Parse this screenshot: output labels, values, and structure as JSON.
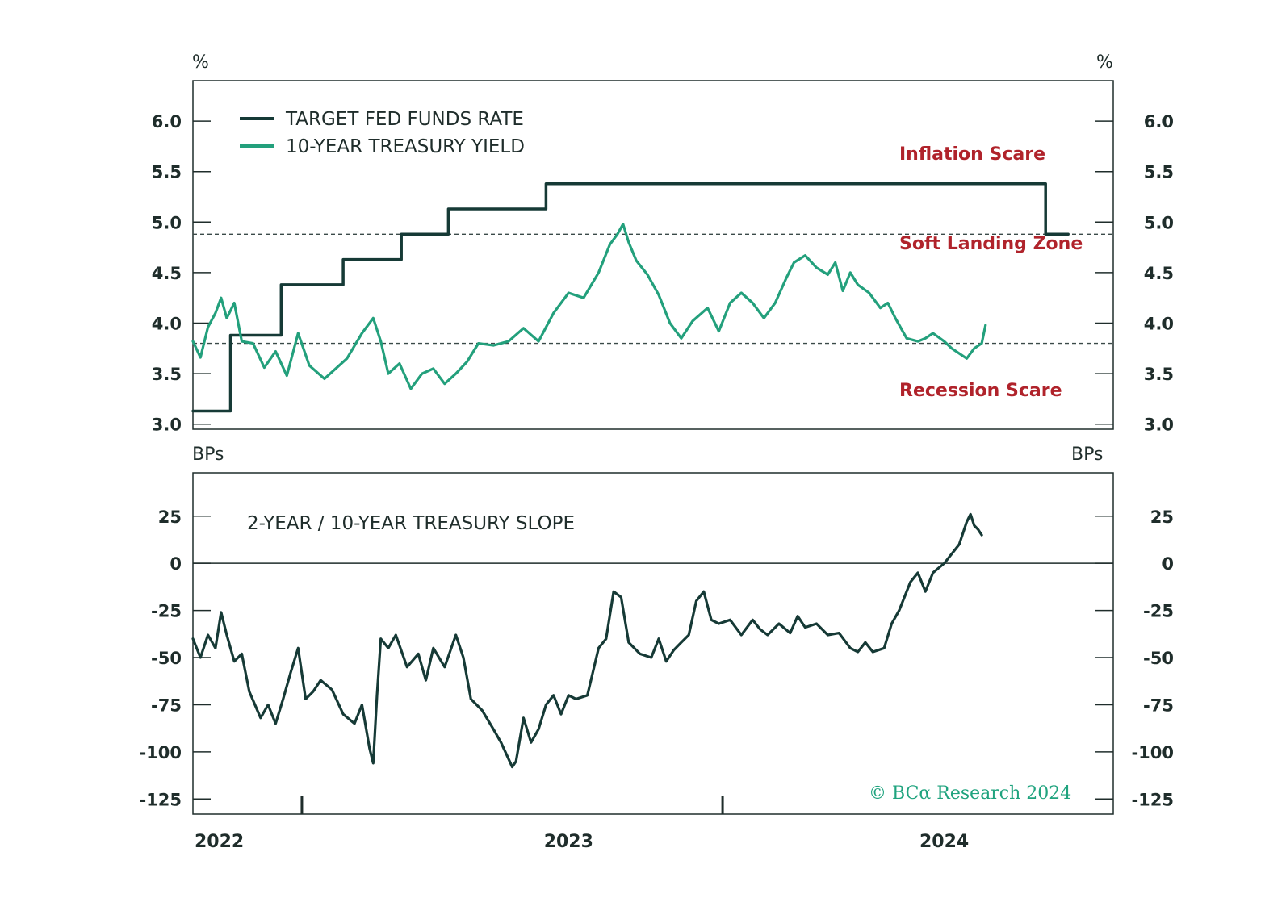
{
  "chart_data": [
    {
      "type": "line",
      "panel": "top",
      "unit_left": "%",
      "unit_right": "%",
      "ylim": [
        2.95,
        6.4
      ],
      "yticks": [
        3.0,
        3.5,
        4.0,
        4.5,
        5.0,
        5.5,
        6.0
      ],
      "ytick_labels": [
        "3.0",
        "3.5",
        "4.0",
        "4.5",
        "5.0",
        "5.5",
        "6.0"
      ],
      "xlim": [
        2022.0,
        2024.45
      ],
      "reference_lines": [
        4.88,
        3.8
      ],
      "annotations": [
        "Inflation Scare",
        "Soft Landing Zone",
        "Recession Scare"
      ],
      "series": [
        {
          "name": "TARGET FED FUNDS RATE",
          "color": "#163a36",
          "step": true,
          "points": [
            [
              2022.0,
              3.13
            ],
            [
              2022.1,
              3.13
            ],
            [
              2022.1,
              3.88
            ],
            [
              2022.235,
              3.88
            ],
            [
              2022.235,
              4.38
            ],
            [
              2022.4,
              4.38
            ],
            [
              2022.4,
              4.63
            ],
            [
              2022.555,
              4.63
            ],
            [
              2022.555,
              4.88
            ],
            [
              2022.68,
              4.88
            ],
            [
              2022.68,
              5.13
            ],
            [
              2022.94,
              5.13
            ],
            [
              2022.94,
              5.38
            ],
            [
              2024.27,
              5.38
            ],
            [
              2024.27,
              4.88
            ],
            [
              2024.33,
              4.88
            ]
          ]
        },
        {
          "name": "10-YEAR TREASURY YIELD",
          "color": "#23a07c",
          "points": [
            [
              2022.0,
              3.82
            ],
            [
              2022.02,
              3.66
            ],
            [
              2022.04,
              3.96
            ],
            [
              2022.06,
              4.1
            ],
            [
              2022.075,
              4.25
            ],
            [
              2022.09,
              4.05
            ],
            [
              2022.11,
              4.2
            ],
            [
              2022.13,
              3.82
            ],
            [
              2022.16,
              3.8
            ],
            [
              2022.19,
              3.56
            ],
            [
              2022.22,
              3.72
            ],
            [
              2022.25,
              3.48
            ],
            [
              2022.28,
              3.9
            ],
            [
              2022.31,
              3.58
            ],
            [
              2022.35,
              3.45
            ],
            [
              2022.38,
              3.55
            ],
            [
              2022.41,
              3.65
            ],
            [
              2022.45,
              3.9
            ],
            [
              2022.48,
              4.05
            ],
            [
              2022.5,
              3.82
            ],
            [
              2022.52,
              3.5
            ],
            [
              2022.55,
              3.6
            ],
            [
              2022.58,
              3.35
            ],
            [
              2022.61,
              3.5
            ],
            [
              2022.64,
              3.55
            ],
            [
              2022.67,
              3.4
            ],
            [
              2022.7,
              3.5
            ],
            [
              2022.73,
              3.62
            ],
            [
              2022.76,
              3.8
            ],
            [
              2022.8,
              3.78
            ],
            [
              2022.84,
              3.82
            ],
            [
              2022.88,
              3.95
            ],
            [
              2022.92,
              3.82
            ],
            [
              2022.96,
              4.1
            ],
            [
              2023.0,
              4.3
            ],
            [
              2023.04,
              4.25
            ],
            [
              2023.08,
              4.5
            ],
            [
              2023.11,
              4.78
            ],
            [
              2023.13,
              4.88
            ],
            [
              2023.145,
              4.98
            ],
            [
              2023.16,
              4.8
            ],
            [
              2023.18,
              4.62
            ],
            [
              2023.21,
              4.48
            ],
            [
              2023.24,
              4.28
            ],
            [
              2023.27,
              4.0
            ],
            [
              2023.3,
              3.85
            ],
            [
              2023.33,
              4.02
            ],
            [
              2023.37,
              4.15
            ],
            [
              2023.4,
              3.92
            ],
            [
              2023.43,
              4.2
            ],
            [
              2023.46,
              4.3
            ],
            [
              2023.49,
              4.2
            ],
            [
              2023.52,
              4.05
            ],
            [
              2023.55,
              4.2
            ],
            [
              2023.58,
              4.45
            ],
            [
              2023.6,
              4.6
            ],
            [
              2023.63,
              4.67
            ],
            [
              2023.66,
              4.55
            ],
            [
              2023.69,
              4.48
            ],
            [
              2023.71,
              4.6
            ],
            [
              2023.73,
              4.32
            ],
            [
              2023.75,
              4.5
            ],
            [
              2023.77,
              4.38
            ],
            [
              2023.8,
              4.3
            ],
            [
              2023.83,
              4.15
            ],
            [
              2023.85,
              4.2
            ],
            [
              2023.87,
              4.05
            ],
            [
              2023.9,
              3.85
            ],
            [
              2023.93,
              3.82
            ],
            [
              2023.95,
              3.85
            ],
            [
              2023.97,
              3.9
            ],
            [
              2024.0,
              3.82
            ],
            [
              2024.02,
              3.75
            ],
            [
              2024.04,
              3.7
            ],
            [
              2024.06,
              3.65
            ],
            [
              2024.08,
              3.75
            ],
            [
              2024.1,
              3.8
            ],
            [
              2024.11,
              3.98
            ]
          ]
        }
      ],
      "legend": [
        "TARGET FED FUNDS RATE",
        "10-YEAR TREASURY YIELD"
      ]
    },
    {
      "type": "line",
      "panel": "bottom",
      "title": "2-YEAR / 10-YEAR TREASURY SLOPE",
      "unit_left": "BPs",
      "unit_right": "BPs",
      "ylim": [
        -133,
        48
      ],
      "yticks": [
        -125,
        -100,
        -75,
        -50,
        -25,
        0,
        25
      ],
      "ytick_labels": [
        "-125",
        "-100",
        "-75",
        "-50",
        "-25",
        "0",
        "25"
      ],
      "xlim": [
        2022.0,
        2024.45
      ],
      "x_ticks": [
        2022.0,
        2023.0,
        2024.0
      ],
      "x_tick_labels": [
        "2022",
        "2023",
        "2024"
      ],
      "x_minor_ticks": [
        2022.29,
        2023.41
      ],
      "reference_lines": [
        0
      ],
      "series": [
        {
          "name": "2-YEAR / 10-YEAR TREASURY SLOPE",
          "color": "#163a36",
          "points": [
            [
              2022.0,
              -40
            ],
            [
              2022.02,
              -50
            ],
            [
              2022.04,
              -38
            ],
            [
              2022.06,
              -45
            ],
            [
              2022.075,
              -26
            ],
            [
              2022.09,
              -38
            ],
            [
              2022.11,
              -52
            ],
            [
              2022.13,
              -48
            ],
            [
              2022.15,
              -68
            ],
            [
              2022.18,
              -82
            ],
            [
              2022.2,
              -75
            ],
            [
              2022.22,
              -85
            ],
            [
              2022.24,
              -72
            ],
            [
              2022.26,
              -58
            ],
            [
              2022.28,
              -45
            ],
            [
              2022.3,
              -72
            ],
            [
              2022.32,
              -68
            ],
            [
              2022.34,
              -62
            ],
            [
              2022.37,
              -67
            ],
            [
              2022.4,
              -80
            ],
            [
              2022.43,
              -85
            ],
            [
              2022.45,
              -75
            ],
            [
              2022.47,
              -98
            ],
            [
              2022.48,
              -106
            ],
            [
              2022.49,
              -70
            ],
            [
              2022.5,
              -40
            ],
            [
              2022.52,
              -45
            ],
            [
              2022.54,
              -38
            ],
            [
              2022.57,
              -55
            ],
            [
              2022.6,
              -48
            ],
            [
              2022.62,
              -62
            ],
            [
              2022.64,
              -45
            ],
            [
              2022.67,
              -55
            ],
            [
              2022.7,
              -38
            ],
            [
              2022.72,
              -50
            ],
            [
              2022.74,
              -72
            ],
            [
              2022.77,
              -78
            ],
            [
              2022.8,
              -88
            ],
            [
              2022.82,
              -95
            ],
            [
              2022.85,
              -108
            ],
            [
              2022.86,
              -105
            ],
            [
              2022.88,
              -82
            ],
            [
              2022.9,
              -95
            ],
            [
              2022.92,
              -88
            ],
            [
              2022.94,
              -75
            ],
            [
              2022.96,
              -70
            ],
            [
              2022.98,
              -80
            ],
            [
              2023.0,
              -70
            ],
            [
              2023.02,
              -72
            ],
            [
              2023.05,
              -70
            ],
            [
              2023.08,
              -45
            ],
            [
              2023.1,
              -40
            ],
            [
              2023.12,
              -15
            ],
            [
              2023.14,
              -18
            ],
            [
              2023.16,
              -42
            ],
            [
              2023.19,
              -48
            ],
            [
              2023.22,
              -50
            ],
            [
              2023.24,
              -40
            ],
            [
              2023.26,
              -52
            ],
            [
              2023.28,
              -46
            ],
            [
              2023.3,
              -42
            ],
            [
              2023.32,
              -38
            ],
            [
              2023.34,
              -20
            ],
            [
              2023.36,
              -15
            ],
            [
              2023.38,
              -30
            ],
            [
              2023.4,
              -32
            ],
            [
              2023.43,
              -30
            ],
            [
              2023.46,
              -38
            ],
            [
              2023.49,
              -30
            ],
            [
              2023.51,
              -35
            ],
            [
              2023.53,
              -38
            ],
            [
              2023.56,
              -32
            ],
            [
              2023.59,
              -37
            ],
            [
              2023.61,
              -28
            ],
            [
              2023.63,
              -34
            ],
            [
              2023.66,
              -32
            ],
            [
              2023.69,
              -38
            ],
            [
              2023.72,
              -37
            ],
            [
              2023.75,
              -45
            ],
            [
              2023.77,
              -47
            ],
            [
              2023.79,
              -42
            ],
            [
              2023.81,
              -47
            ],
            [
              2023.84,
              -45
            ],
            [
              2023.86,
              -32
            ],
            [
              2023.88,
              -25
            ],
            [
              2023.91,
              -10
            ],
            [
              2023.93,
              -5
            ],
            [
              2023.95,
              -15
            ],
            [
              2023.97,
              -5
            ],
            [
              2024.0,
              0
            ],
            [
              2024.02,
              5
            ],
            [
              2024.04,
              10
            ],
            [
              2024.06,
              22
            ],
            [
              2024.07,
              26
            ],
            [
              2024.08,
              20
            ],
            [
              2024.09,
              18
            ],
            [
              2024.1,
              15
            ]
          ]
        }
      ]
    }
  ],
  "copyright": "© BCα Research 2024"
}
